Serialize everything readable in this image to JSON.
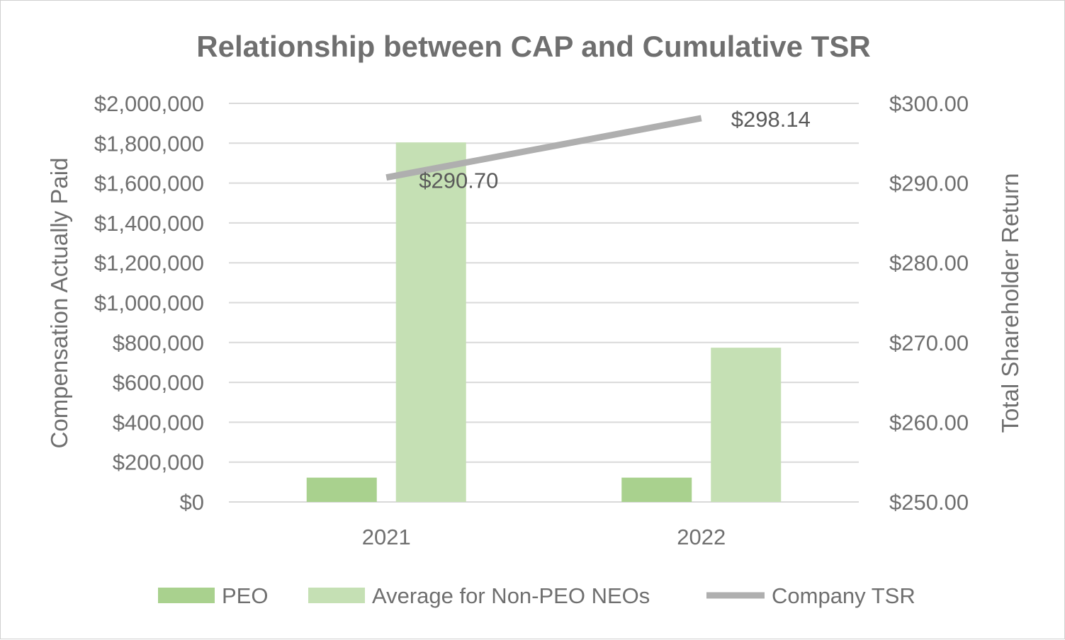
{
  "chart_data": {
    "type": "bar",
    "title": "Relationship between CAP and Cumulative TSR",
    "categories": [
      "2021",
      "2022"
    ],
    "series": [
      {
        "name": "PEO",
        "kind": "bar",
        "axis": "left",
        "color": "#a9d18e",
        "values": [
          122000,
          122000
        ]
      },
      {
        "name": "Average for Non-PEO NEOs",
        "kind": "bar",
        "axis": "left",
        "color": "#c5e0b4",
        "values": [
          1804000,
          774000
        ]
      },
      {
        "name": "Company TSR",
        "kind": "line",
        "axis": "right",
        "color": "#afafaf",
        "values": [
          290.7,
          298.14
        ],
        "labels": [
          "$290.70",
          "$298.14"
        ]
      }
    ],
    "ylabel": "Compensation Actually Paid",
    "ylim": [
      0,
      2000000
    ],
    "yticks": [
      0,
      200000,
      400000,
      600000,
      800000,
      1000000,
      1200000,
      1400000,
      1600000,
      1800000,
      2000000
    ],
    "ytick_labels": [
      "$0",
      "$200,000",
      "$400,000",
      "$600,000",
      "$800,000",
      "$1,000,000",
      "$1,200,000",
      "$1,400,000",
      "$1,600,000",
      "$1,800,000",
      "$2,000,000"
    ],
    "y2label": "Total Shareholder Return",
    "y2lim": [
      250,
      300
    ],
    "y2ticks": [
      250,
      260,
      270,
      280,
      290,
      300
    ],
    "y2tick_labels": [
      "$250.00",
      "$260.00",
      "$270.00",
      "$280.00",
      "$290.00",
      "$300.00"
    ],
    "grid": true,
    "legend": {
      "position": "bottom",
      "items": [
        {
          "label": "PEO",
          "kind": "box",
          "color": "#a9d18e"
        },
        {
          "label": "Average for Non-PEO NEOs",
          "kind": "box",
          "color": "#c5e0b4"
        },
        {
          "label": "Company TSR",
          "kind": "line",
          "color": "#afafaf"
        }
      ]
    }
  }
}
